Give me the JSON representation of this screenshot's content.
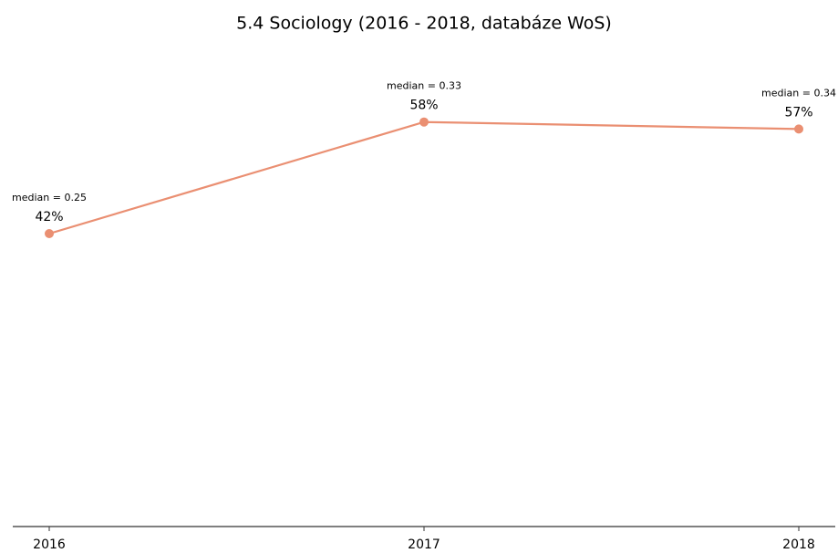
{
  "chart_data": {
    "type": "line",
    "title": "5.4 Sociology (2016 - 2018, databáze WoS)",
    "categories": [
      "2016",
      "2017",
      "2018"
    ],
    "series": [
      {
        "name": "Sociology",
        "color": "#ea8f72",
        "values": [
          42,
          58,
          57
        ],
        "value_labels": [
          "42%",
          "58%",
          "57%"
        ]
      }
    ],
    "annotations": [
      "median = 0.25",
      "median = 0.33",
      "median = 0.34"
    ],
    "ylim": [
      0,
      70
    ]
  }
}
